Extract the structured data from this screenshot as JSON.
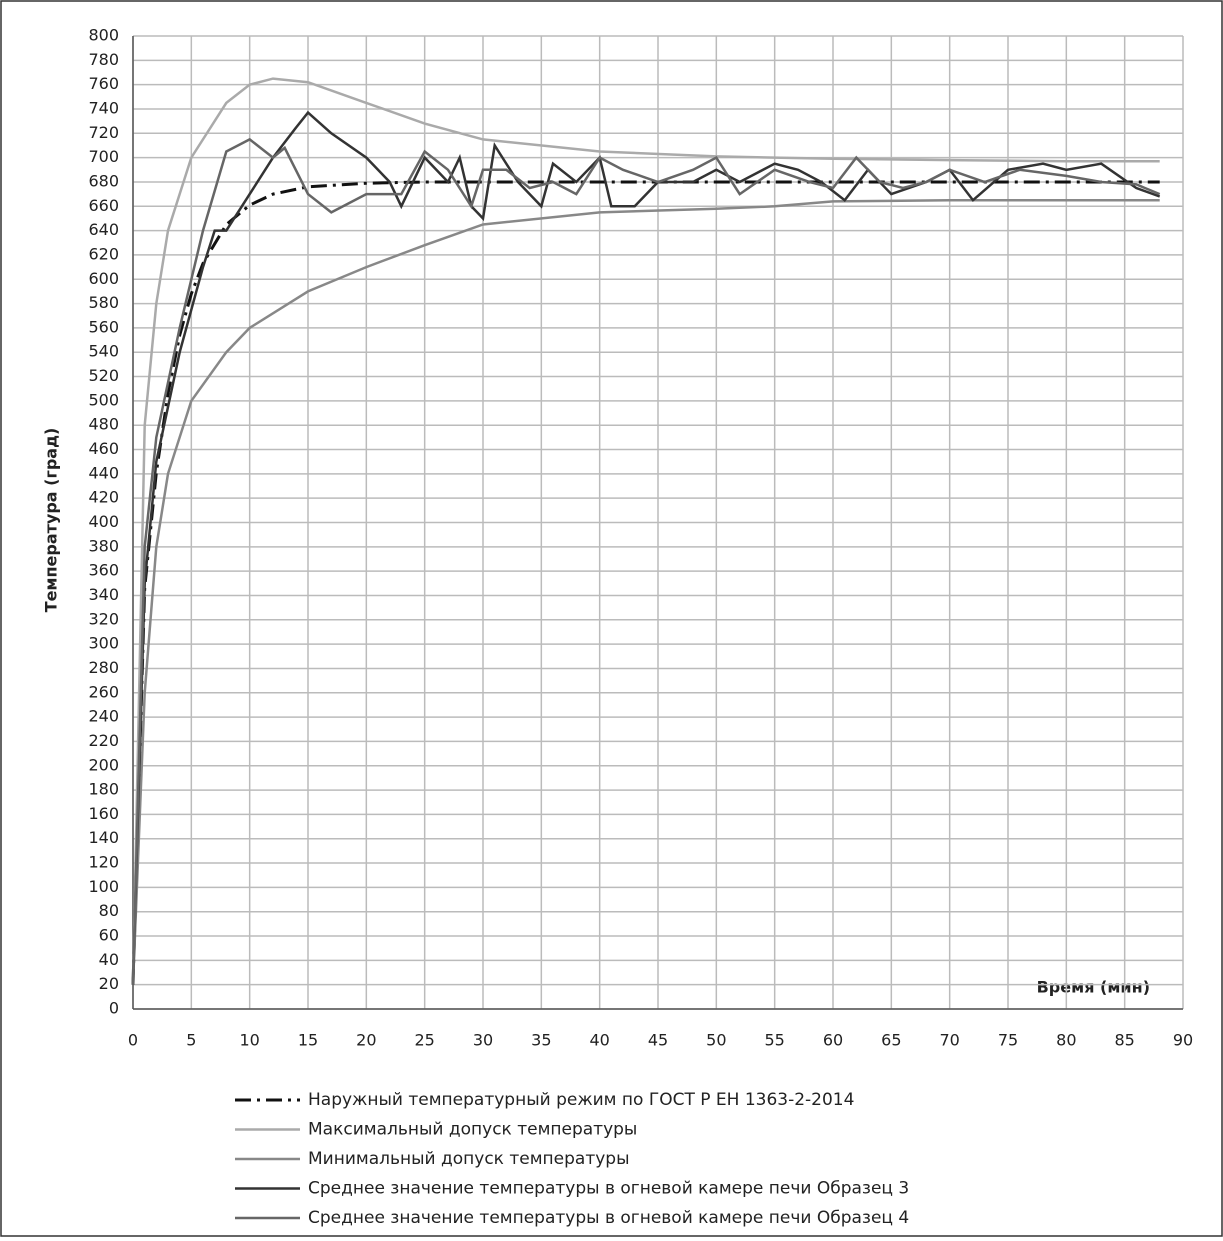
{
  "chart_data": {
    "type": "line",
    "ylabel": "Температура (град)",
    "xlabel": "Время (мин)",
    "xlim": [
      0,
      90
    ],
    "ylim": [
      0,
      800
    ],
    "xticks": [
      0,
      5,
      10,
      15,
      20,
      25,
      30,
      35,
      40,
      45,
      50,
      55,
      60,
      65,
      70,
      75,
      80,
      85,
      90
    ],
    "yticks": [
      0,
      20,
      40,
      60,
      80,
      100,
      120,
      140,
      160,
      180,
      200,
      220,
      240,
      260,
      280,
      300,
      320,
      340,
      360,
      380,
      400,
      420,
      440,
      460,
      480,
      500,
      520,
      540,
      560,
      580,
      600,
      620,
      640,
      660,
      680,
      700,
      720,
      740,
      760,
      780,
      800
    ],
    "grid": true,
    "legend": "bottom",
    "series": [
      {
        "name": "Наружный температурный режим по ГОСТ Р ЕН 1363-2-2014",
        "color": "#111111",
        "dash": "dashdot",
        "x": [
          0,
          1,
          2,
          3,
          4,
          5,
          6,
          8,
          10,
          12,
          15,
          20,
          25,
          30,
          40,
          50,
          60,
          70,
          80,
          88
        ],
        "values": [
          20,
          346,
          441,
          506,
          554,
          588,
          613,
          645,
          661,
          670,
          676,
          679,
          680,
          680,
          680,
          680,
          680,
          680,
          680,
          680
        ]
      },
      {
        "name": "Максимальный допуск температуры",
        "color": "#aaaaaa",
        "x": [
          0,
          1,
          2,
          3,
          5,
          8,
          10,
          12,
          15,
          20,
          25,
          30,
          40,
          50,
          55,
          60,
          70,
          80,
          88
        ],
        "values": [
          20,
          480,
          580,
          640,
          700,
          745,
          760,
          765,
          762,
          745,
          728,
          715,
          705,
          701,
          700,
          699,
          698,
          697,
          697
        ]
      },
      {
        "name": "Минимальный допуск температуры",
        "color": "#888888",
        "x": [
          0,
          1,
          2,
          3,
          5,
          8,
          10,
          15,
          20,
          25,
          30,
          40,
          50,
          55,
          60,
          70,
          80,
          88
        ],
        "values": [
          20,
          260,
          380,
          440,
          500,
          540,
          560,
          590,
          610,
          628,
          645,
          655,
          658,
          660,
          664,
          665,
          665,
          665
        ]
      },
      {
        "name": "Среднее значение температуры в огневой камере печи Образец 3",
        "color": "#333333",
        "x": [
          0,
          1,
          2,
          4,
          6,
          7,
          8,
          10,
          12,
          14,
          15,
          17,
          20,
          22,
          23,
          25,
          27,
          28,
          29,
          30,
          31,
          33,
          35,
          36,
          38,
          40,
          41,
          43,
          45,
          48,
          50,
          52,
          55,
          57,
          59,
          61,
          63,
          65,
          68,
          70,
          72,
          75,
          78,
          80,
          83,
          86,
          88
        ],
        "values": [
          20,
          350,
          450,
          540,
          610,
          640,
          640,
          670,
          700,
          725,
          737,
          720,
          700,
          680,
          660,
          700,
          680,
          700,
          660,
          650,
          710,
          680,
          660,
          695,
          680,
          700,
          660,
          660,
          680,
          680,
          690,
          680,
          695,
          690,
          680,
          665,
          690,
          670,
          680,
          690,
          665,
          690,
          695,
          690,
          695,
          675,
          668
        ]
      },
      {
        "name": "Среднее значение температуры в огневой камере печи Образец 4",
        "color": "#666666",
        "x": [
          0,
          1,
          2,
          4,
          6,
          8,
          10,
          12,
          13,
          15,
          17,
          20,
          23,
          25,
          27,
          29,
          30,
          32,
          34,
          36,
          38,
          40,
          42,
          45,
          48,
          50,
          52,
          55,
          58,
          60,
          62,
          64,
          66,
          68,
          70,
          73,
          76,
          80,
          83,
          86,
          88
        ],
        "values": [
          20,
          380,
          470,
          560,
          640,
          705,
          715,
          700,
          708,
          670,
          655,
          670,
          670,
          705,
          690,
          660,
          690,
          690,
          675,
          680,
          670,
          700,
          690,
          680,
          690,
          700,
          670,
          690,
          680,
          675,
          700,
          680,
          675,
          680,
          690,
          680,
          690,
          685,
          680,
          678,
          670
        ]
      }
    ]
  }
}
